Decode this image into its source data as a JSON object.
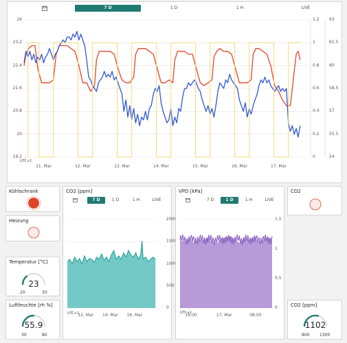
{
  "main_chart": {
    "tabs": [
      {
        "label": "",
        "icon": "calendar-icon",
        "active": false
      },
      {
        "label": "7 D",
        "active": true
      },
      {
        "label": "1 D",
        "active": false
      },
      {
        "label": "1 H",
        "active": false
      },
      {
        "label": "LIVE",
        "active": false
      }
    ],
    "utc_label": "UTC+1",
    "colors": {
      "red": "#e0452c",
      "blue": "#2e55d4",
      "yellow": "#f7d878",
      "accent": "#1f7a72"
    }
  },
  "chart_data": [
    {
      "type": "line",
      "x_labels": [
        "11. Mar",
        "12. Mar",
        "13. Mar",
        "14. Mar",
        "15. Mar",
        "16. Mar",
        "17. Mar"
      ],
      "y_left_ticks": [
        "24",
        "23.2",
        "22.4",
        "21.6",
        "20.8",
        "20",
        "19.2"
      ],
      "y_right1_ticks": [
        "1.2",
        "1",
        "0.8",
        "0.6",
        "0.4",
        "0.2",
        "0"
      ],
      "y_right2_ticks": [
        "63",
        "61.5",
        "60",
        "58.5",
        "57",
        "55.5",
        "54"
      ],
      "ylim_left": [
        19.2,
        24
      ],
      "ylim_right1": [
        0,
        1.2
      ],
      "ylim_right2": [
        54,
        63
      ],
      "xlim_days": [
        10.5,
        17.8
      ],
      "series": [
        {
          "color": "#e0452c",
          "axis": "left",
          "x": [
            10.5,
            10.55,
            10.62,
            10.7,
            10.78,
            10.85,
            10.95,
            11.05,
            11.15,
            11.25,
            11.32,
            11.4,
            11.5,
            11.6,
            11.7,
            11.8,
            11.9,
            12.0,
            12.1,
            12.2,
            12.3,
            12.35,
            12.42,
            12.5,
            12.6,
            12.7,
            12.8,
            12.9,
            13.0,
            13.1,
            13.2,
            13.3,
            13.35,
            13.42,
            13.5,
            13.6,
            13.7,
            13.8,
            13.9,
            14.0,
            14.1,
            14.2,
            14.3,
            14.35,
            14.42,
            14.5,
            14.6,
            14.7,
            14.8,
            14.9,
            15.0,
            15.1,
            15.2,
            15.3,
            15.35,
            15.42,
            15.5,
            15.6,
            15.7,
            15.8,
            15.9,
            16.0,
            16.1,
            16.2,
            16.3,
            16.35,
            16.42,
            16.5,
            16.6,
            16.7,
            16.8,
            16.9,
            17.0,
            17.1,
            17.2,
            17.3,
            17.35,
            17.4,
            17.45,
            17.5,
            17.55
          ],
          "y": [
            22.4,
            22.8,
            23.0,
            23.1,
            23.1,
            22.3,
            21.8,
            21.8,
            21.8,
            21.9,
            22.8,
            23.1,
            23.1,
            23.1,
            23.0,
            22.9,
            22.4,
            21.8,
            21.8,
            21.5,
            21.7,
            22.6,
            22.9,
            22.9,
            22.9,
            22.9,
            22.8,
            22.3,
            21.9,
            21.8,
            21.8,
            22.0,
            22.8,
            23.0,
            23.0,
            23.0,
            22.9,
            22.8,
            22.3,
            21.8,
            21.8,
            21.9,
            21.8,
            22.6,
            22.9,
            22.9,
            22.9,
            22.8,
            22.8,
            22.3,
            21.8,
            21.7,
            21.8,
            21.9,
            22.7,
            22.9,
            23.0,
            22.9,
            22.9,
            22.8,
            22.3,
            21.8,
            21.8,
            21.8,
            21.9,
            22.8,
            23.0,
            23.0,
            22.9,
            22.8,
            22.4,
            21.7,
            21.5,
            21.2,
            21.0,
            21.0,
            21.6,
            22.2,
            22.8,
            22.9,
            22.6
          ]
        },
        {
          "color": "#2e55d4",
          "axis": "left",
          "x": [
            10.5,
            10.55,
            10.6,
            10.65,
            10.7,
            10.75,
            10.8,
            10.85,
            10.9,
            10.95,
            11.0,
            11.05,
            11.1,
            11.15,
            11.2,
            11.25,
            11.3,
            11.35,
            11.4,
            11.45,
            11.5,
            11.55,
            11.6,
            11.65,
            11.7,
            11.75,
            11.8,
            11.85,
            11.9,
            11.95,
            12.0,
            12.05,
            12.1,
            12.15,
            12.2,
            12.25,
            12.3,
            12.35,
            12.4,
            12.45,
            12.5,
            12.55,
            12.6,
            12.65,
            12.7,
            12.75,
            12.8,
            12.85,
            12.9,
            12.95,
            13.0,
            13.05,
            13.1,
            13.15,
            13.2,
            13.25,
            13.3,
            13.35,
            13.4,
            13.45,
            13.5,
            13.55,
            13.6,
            13.65,
            13.7,
            13.75,
            13.8,
            13.85,
            13.9,
            13.95,
            14.0,
            14.05,
            14.1,
            14.15,
            14.2,
            14.25,
            14.3,
            14.35,
            14.4,
            14.45,
            14.5,
            14.55,
            14.6,
            14.65,
            14.7,
            14.75,
            14.8,
            14.85,
            14.9,
            14.95,
            15.0,
            15.05,
            15.1,
            15.15,
            15.2,
            15.25,
            15.3,
            15.35,
            15.4,
            15.45,
            15.5,
            15.55,
            15.6,
            15.65,
            15.7,
            15.75,
            15.8,
            15.85,
            15.9,
            15.95,
            16.0,
            16.05,
            16.1,
            16.15,
            16.2,
            16.25,
            16.3,
            16.35,
            16.4,
            16.45,
            16.5,
            16.55,
            16.6,
            16.65,
            16.7,
            16.75,
            16.8,
            16.85,
            16.9,
            16.95,
            17.0,
            17.05,
            17.1,
            17.15,
            17.2,
            17.25,
            17.3,
            17.35,
            17.4,
            17.45,
            17.5,
            17.55
          ],
          "y": [
            22.5,
            22.9,
            22.7,
            22.9,
            22.6,
            22.8,
            22.5,
            22.7,
            22.6,
            22.8,
            22.5,
            22.7,
            22.8,
            23.0,
            22.8,
            22.6,
            22.8,
            22.9,
            23.1,
            23.2,
            23.3,
            23.2,
            23.4,
            23.4,
            23.3,
            23.5,
            23.4,
            23.6,
            23.3,
            23.5,
            23.3,
            23.1,
            22.6,
            22.0,
            21.9,
            21.7,
            21.6,
            21.5,
            21.8,
            21.9,
            22.0,
            22.2,
            22.0,
            22.1,
            22.0,
            22.2,
            21.9,
            22.0,
            21.8,
            21.6,
            21.4,
            20.8,
            21.2,
            20.6,
            21.0,
            20.5,
            20.9,
            20.4,
            20.7,
            20.3,
            20.6,
            20.5,
            20.8,
            20.5,
            20.9,
            21.0,
            21.4,
            21.6,
            21.5,
            21.7,
            21.1,
            20.8,
            20.6,
            20.4,
            20.5,
            20.9,
            20.3,
            20.6,
            20.4,
            20.9,
            20.8,
            21.3,
            21.6,
            21.6,
            21.8,
            21.7,
            21.8,
            21.9,
            21.8,
            21.6,
            21.5,
            21.2,
            21.0,
            20.8,
            21.0,
            20.7,
            20.9,
            20.6,
            21.0,
            21.5,
            21.8,
            21.7,
            21.6,
            21.9,
            21.8,
            22.1,
            21.9,
            21.8,
            21.7,
            21.6,
            21.2,
            21.0,
            20.8,
            21.1,
            20.6,
            20.9,
            20.7,
            21.0,
            21.2,
            21.4,
            21.7,
            21.9,
            21.8,
            22.0,
            21.8,
            21.9,
            21.7,
            21.6,
            21.5,
            21.6,
            21.7,
            21.5,
            21.6,
            21.5,
            21.6,
            20.4,
            20.1,
            20.3,
            20.0,
            20.2,
            19.9,
            20.3
          ]
        },
        {
          "color": "#f7d878",
          "axis": "right1",
          "x": [
            10.5,
            10.6,
            10.6,
            10.88,
            10.88,
            11.25,
            11.25,
            11.88,
            11.88,
            12.25,
            12.25,
            12.88,
            12.88,
            13.25,
            13.25,
            13.88,
            13.88,
            14.25,
            14.25,
            14.88,
            14.88,
            15.25,
            15.25,
            15.88,
            15.88,
            16.25,
            16.25,
            16.88,
            16.88,
            17.25,
            17.25,
            17.55
          ],
          "y": [
            0,
            0,
            1,
            1,
            0,
            0,
            1,
            1,
            0,
            0,
            1,
            1,
            0,
            0,
            1,
            1,
            0,
            0,
            1,
            1,
            0,
            0,
            1,
            1,
            0,
            0,
            1,
            1,
            0,
            0,
            1,
            1
          ]
        }
      ]
    },
    {
      "type": "area",
      "title": "CO2 [ppm]",
      "x_labels": [
        "12. Mar",
        "14. Mar",
        "16. Mar"
      ],
      "y_ticks": [
        "2000",
        "1500",
        "1000",
        "500",
        "0"
      ],
      "ylim": [
        0,
        2000
      ],
      "xlim_days": [
        10.5,
        17.8
      ],
      "series": [
        {
          "color": "#1aa5a1",
          "x": [
            10.5,
            10.7,
            10.9,
            11.1,
            11.3,
            11.5,
            11.7,
            11.9,
            12.1,
            12.3,
            12.5,
            12.7,
            12.9,
            13.1,
            13.3,
            13.5,
            13.7,
            13.9,
            14.1,
            14.3,
            14.5,
            14.7,
            14.9,
            15.1,
            15.3,
            15.5,
            15.7,
            15.9,
            16.1,
            16.3,
            16.5,
            16.6,
            16.7,
            16.9,
            17.1,
            17.3,
            17.5,
            17.7
          ],
          "y": [
            1050,
            1100,
            1000,
            1150,
            1050,
            1120,
            1000,
            1180,
            1050,
            1120,
            1100,
            1030,
            1150,
            1100,
            1220,
            1080,
            1150,
            1050,
            1200,
            1300,
            1100,
            1180,
            1100,
            1250,
            1150,
            1300,
            1200,
            1150,
            1250,
            1100,
            1200,
            1520,
            1100,
            1150,
            1050,
            1100,
            1150,
            1100
          ]
        }
      ]
    },
    {
      "type": "area",
      "title": "VPD [kPa]",
      "x_labels": [
        "16:00",
        "17. Mar",
        "08:00"
      ],
      "y_ticks": [
        "1.5",
        "1",
        "0.5",
        "0"
      ],
      "ylim": [
        0,
        1.5
      ],
      "series": [
        {
          "color": "#a07ccd",
          "x": [
            0,
            0.05,
            0.1,
            0.15,
            0.2,
            0.25,
            0.3,
            0.35,
            0.4,
            0.45,
            0.5,
            0.55,
            0.6,
            0.65,
            0.7,
            0.75,
            0.8,
            0.85,
            0.9,
            0.95,
            1.0
          ],
          "y": [
            1.15,
            1.12,
            1.18,
            1.1,
            1.16,
            1.14,
            1.2,
            1.12,
            1.1,
            1.18,
            1.2,
            1.22,
            1.15,
            1.1,
            1.18,
            1.16,
            1.2,
            1.12,
            1.14,
            1.2,
            1.18
          ]
        }
      ]
    }
  ],
  "co2_chart": {
    "tabs": [
      {
        "label": "",
        "icon": "calendar-icon",
        "active": false
      },
      {
        "label": "7 D",
        "active": true
      },
      {
        "label": "1 D",
        "active": false
      },
      {
        "label": "1 H",
        "active": false
      },
      {
        "label": "LIVE",
        "active": false
      }
    ],
    "utc_label": "UTC+1"
  },
  "vpd_chart": {
    "tabs": [
      {
        "label": "",
        "icon": "calendar-icon",
        "active": false
      },
      {
        "label": "7 D",
        "active": false
      },
      {
        "label": "1 D",
        "active": true
      },
      {
        "label": "1 H",
        "active": false
      },
      {
        "label": "LIVE",
        "active": false
      }
    ],
    "utc_label": "UTC+1"
  },
  "widgets": {
    "kuehlschrank": {
      "title": "Kühlschrank",
      "state": "on",
      "color": "#e0452c"
    },
    "heizung": {
      "title": "Heizung",
      "state": "off",
      "color": "#e0452c"
    },
    "co2_indicator": {
      "title": "CO2",
      "state": "off",
      "color": "#e0452c"
    },
    "temperatur": {
      "title": "Temperatur [°C]",
      "value": "23",
      "min": "20",
      "max": "30",
      "fraction": 0.3
    },
    "luftfeuchte": {
      "title": "Luftfeuchte [rh %]",
      "value": "55.9",
      "min": "30",
      "max": "80",
      "fraction": 0.52
    },
    "co2_gauge": {
      "title": "CO2 [ppm]",
      "value": "1102",
      "min": "800",
      "max": "1300",
      "fraction": 0.6
    }
  }
}
